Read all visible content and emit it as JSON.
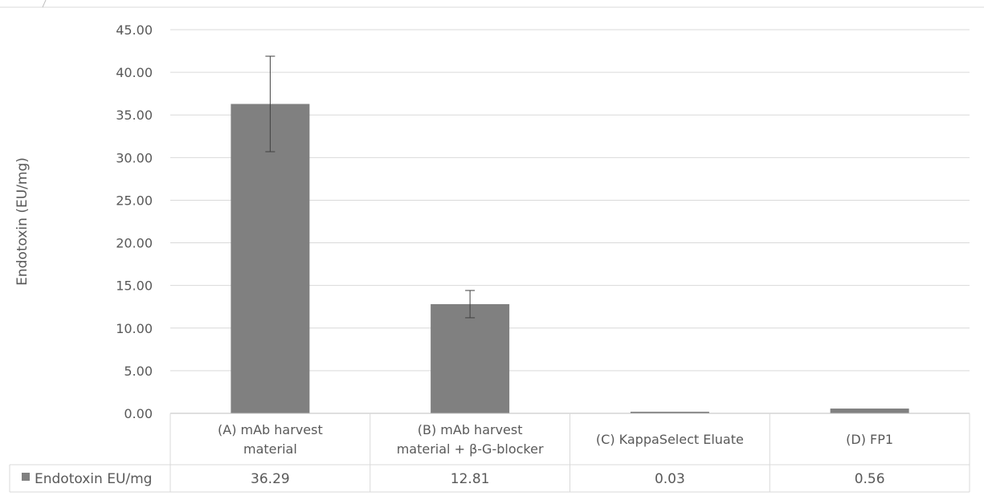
{
  "chart_data": {
    "type": "bar",
    "ylabel": "Endotoxin (EU/mg)",
    "ylim": [
      0,
      45
    ],
    "ytick_step": 5,
    "ytick_labels": [
      "0.00",
      "5.00",
      "10.00",
      "15.00",
      "20.00",
      "25.00",
      "30.00",
      "35.00",
      "40.00",
      "45.00"
    ],
    "categories": [
      [
        "(A) mAb  harvest",
        "material"
      ],
      [
        "(B) mAb harvest",
        "material + β-G-blocker"
      ],
      [
        "(C) KappaSelect Eluate"
      ],
      [
        "(D) FP1"
      ]
    ],
    "series": [
      {
        "name": "Endotoxin EU/mg",
        "values": [
          36.29,
          12.81,
          0.03,
          0.56
        ],
        "value_labels": [
          "36.29",
          "12.81",
          "0.03",
          "0.56"
        ],
        "error": [
          5.6,
          1.6,
          0,
          0
        ],
        "color": "#808080"
      }
    ],
    "grid": true,
    "legend": "data-table-left",
    "data_table": true
  }
}
